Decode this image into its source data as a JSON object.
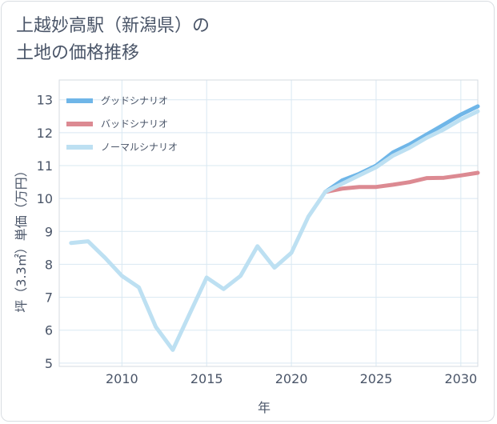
{
  "chart_data": {
    "type": "line",
    "title_line1": "上越妙高駅（新潟県）の",
    "title_line2": "土地の価格推移",
    "xlabel": "年",
    "ylabel": "坪（3.3㎡）単価（万円）",
    "xlim": [
      2006.3,
      2031
    ],
    "ylim": [
      4.9,
      13.6
    ],
    "xticks": [
      2010,
      2015,
      2020,
      2025,
      2030
    ],
    "yticks": [
      5,
      6,
      7,
      8,
      9,
      10,
      11,
      12,
      13
    ],
    "grid": true,
    "legend_position": "top-left",
    "series": [
      {
        "name": "グッドシナリオ",
        "color": "#6fb6e8",
        "x": [
          2022,
          2023,
          2024,
          2025,
          2026,
          2027,
          2028,
          2029,
          2030,
          2031
        ],
        "y": [
          10.2,
          10.55,
          10.75,
          11.0,
          11.4,
          11.65,
          11.95,
          12.25,
          12.55,
          12.8
        ]
      },
      {
        "name": "バッドシナリオ",
        "color": "#dc8a92",
        "x": [
          2022,
          2023,
          2024,
          2025,
          2026,
          2027,
          2028,
          2029,
          2030,
          2031
        ],
        "y": [
          10.2,
          10.3,
          10.35,
          10.35,
          10.42,
          10.5,
          10.62,
          10.63,
          10.7,
          10.78
        ]
      },
      {
        "name": "ノーマルシナリオ",
        "color": "#bde0f2",
        "x": [
          2007,
          2008,
          2009,
          2010,
          2011,
          2012,
          2013,
          2014,
          2015,
          2016,
          2017,
          2018,
          2019,
          2020,
          2021,
          2022,
          2023,
          2024,
          2025,
          2026,
          2027,
          2028,
          2029,
          2030,
          2031
        ],
        "y": [
          8.65,
          8.7,
          8.2,
          7.65,
          7.3,
          6.1,
          5.4,
          6.5,
          7.6,
          7.25,
          7.65,
          8.55,
          7.9,
          8.35,
          9.45,
          10.2,
          10.45,
          10.7,
          10.95,
          11.3,
          11.55,
          11.85,
          12.1,
          12.4,
          12.65
        ]
      }
    ]
  }
}
